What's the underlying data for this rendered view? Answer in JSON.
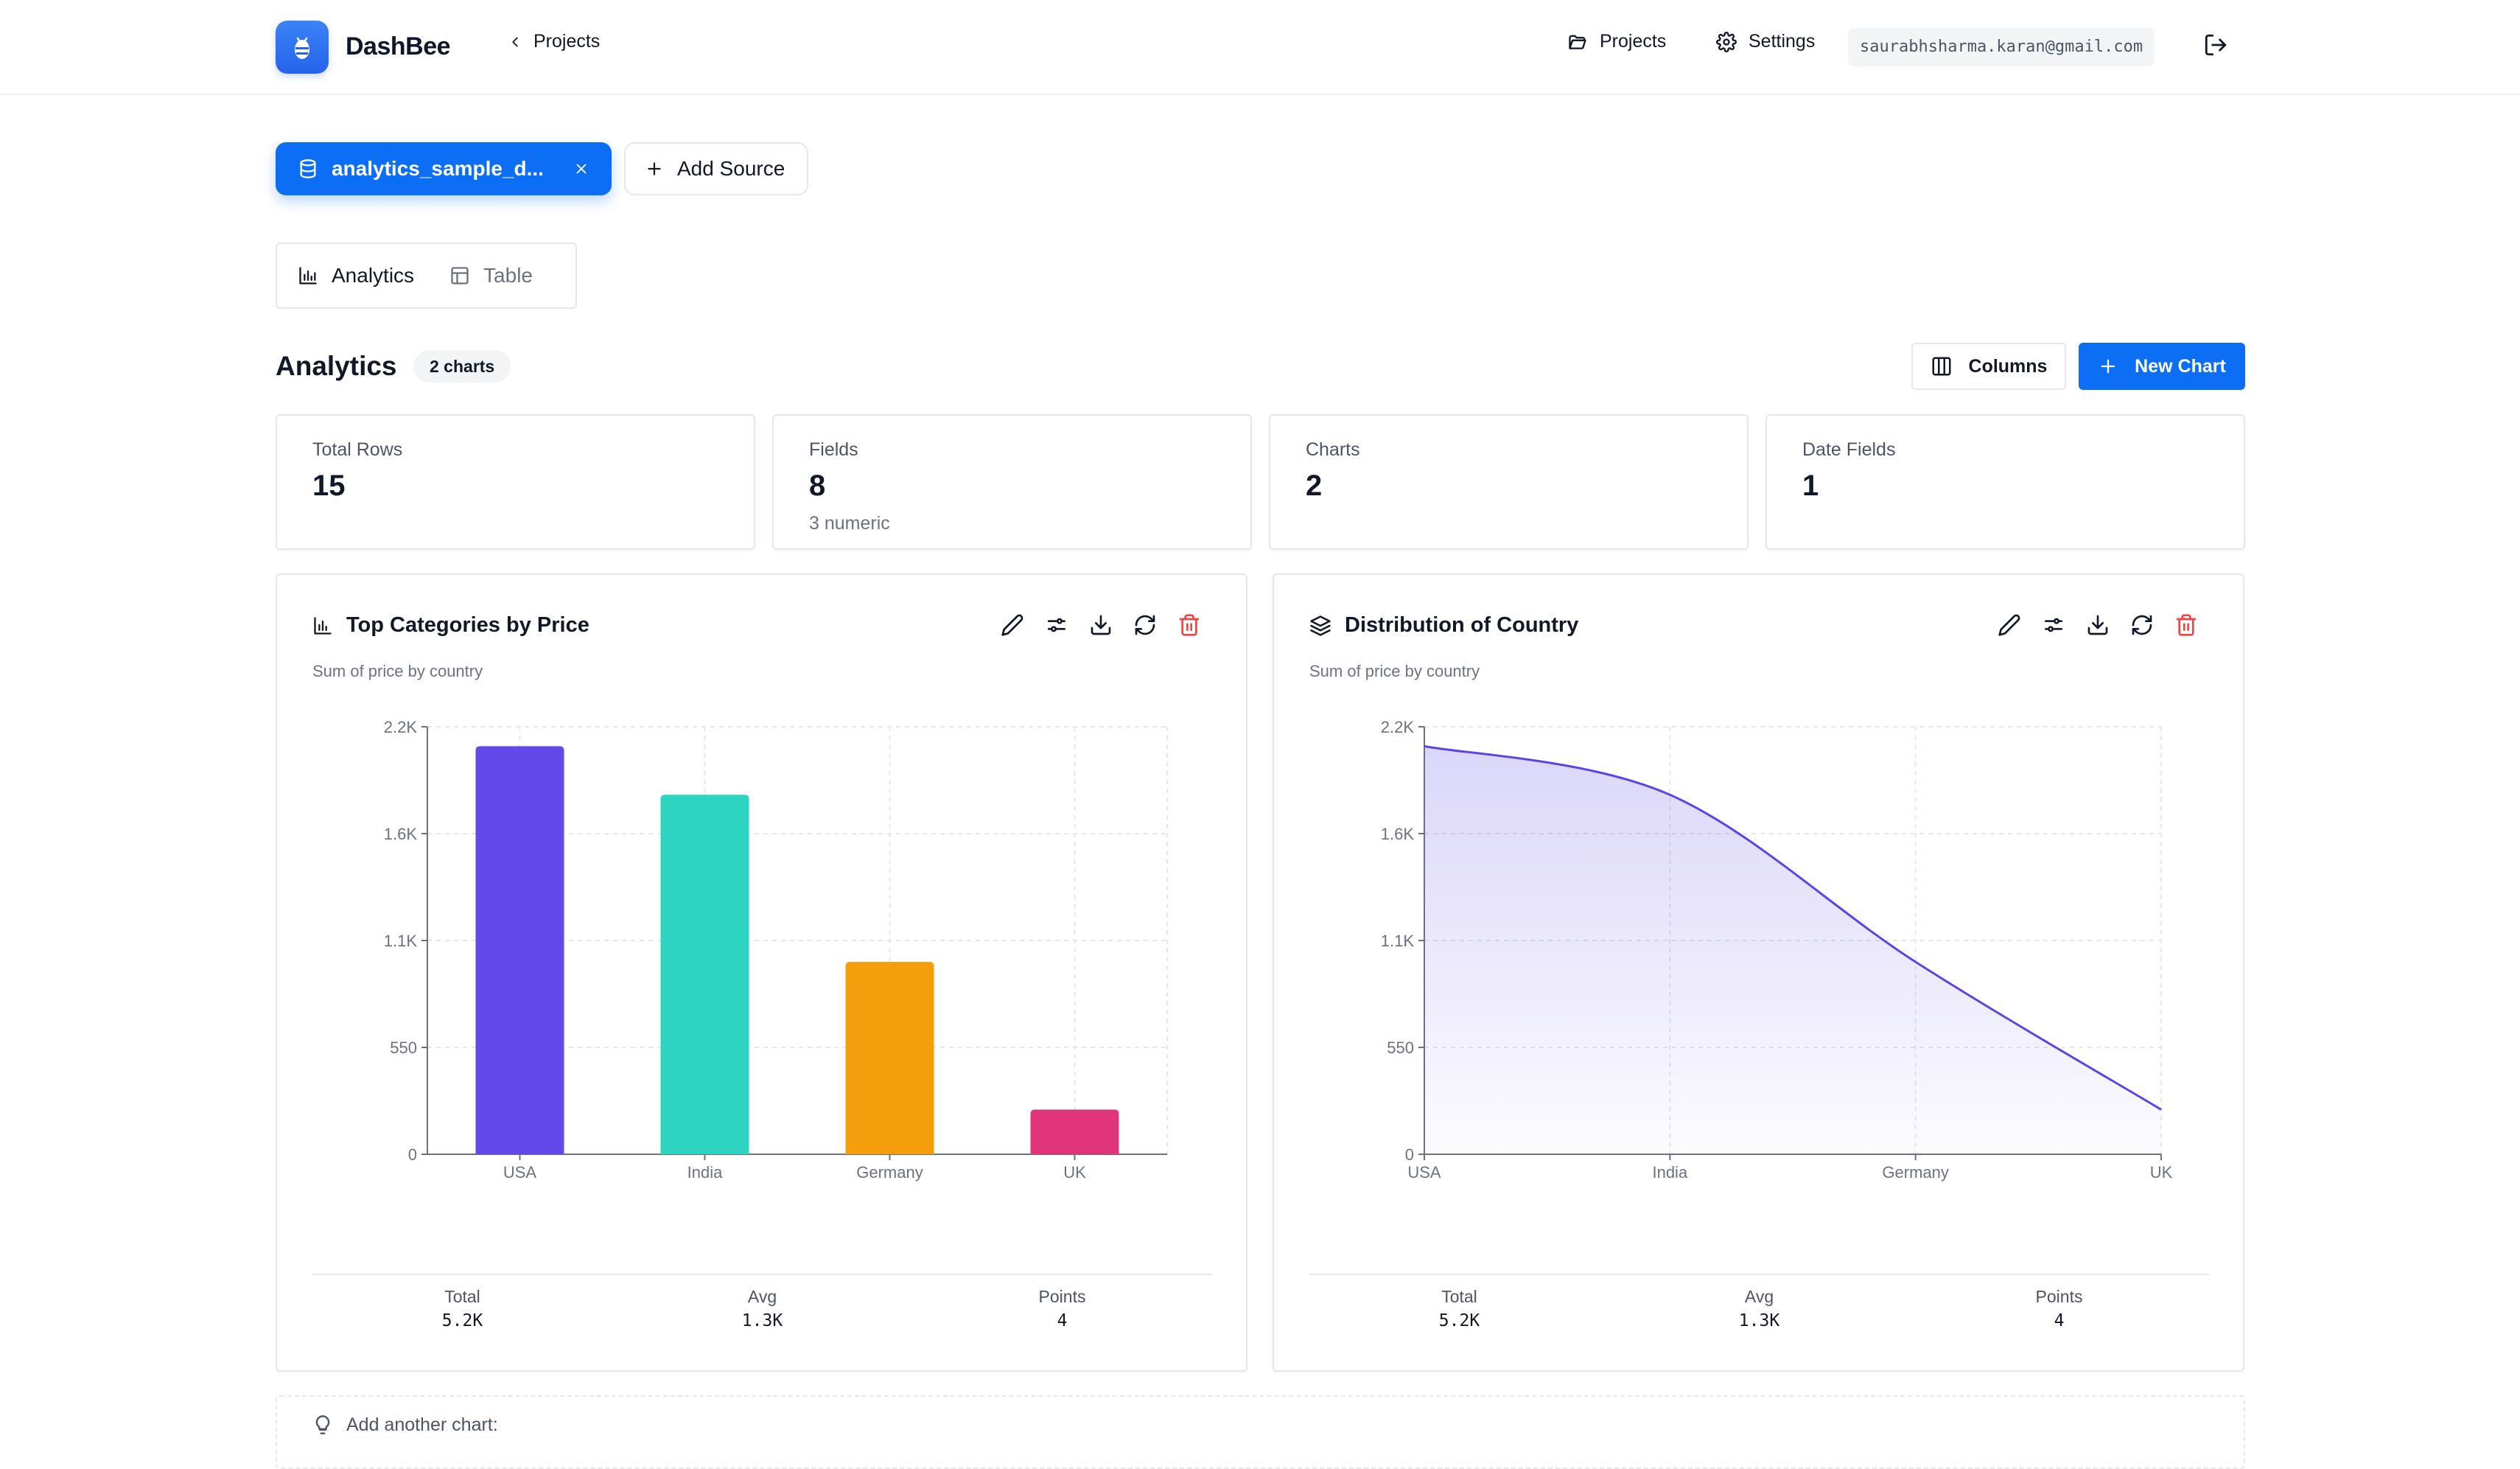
{
  "header": {
    "brand": "DashBee",
    "back_label": "Projects",
    "nav_projects": "Projects",
    "nav_settings": "Settings",
    "email": "saurabhsharma.karan@gmail.com"
  },
  "sources": {
    "active": "analytics_sample_d...",
    "add_label": "Add Source"
  },
  "view_tabs": [
    {
      "label": "Analytics",
      "active": true
    },
    {
      "label": "Table",
      "active": false
    }
  ],
  "section": {
    "title": "Analytics",
    "badge": "2 charts",
    "columns_label": "Columns",
    "new_chart_label": "New Chart"
  },
  "stats": [
    {
      "label": "Total Rows",
      "value": "15",
      "sub": ""
    },
    {
      "label": "Fields",
      "value": "8",
      "sub": "3 numeric"
    },
    {
      "label": "Charts",
      "value": "2",
      "sub": ""
    },
    {
      "label": "Date Fields",
      "value": "1",
      "sub": ""
    }
  ],
  "charts": [
    {
      "title": "Top Categories by Price",
      "subtitle": "Sum of price by country",
      "icon": "bar-chart-icon",
      "summary": {
        "total_label": "Total",
        "total": "5.2K",
        "avg_label": "Avg",
        "avg": "1.3K",
        "points_label": "Points",
        "points": "4"
      }
    },
    {
      "title": "Distribution of Country",
      "subtitle": "Sum of price by country",
      "icon": "layers-icon",
      "summary": {
        "total_label": "Total",
        "total": "5.2K",
        "avg_label": "Avg",
        "avg": "1.3K",
        "points_label": "Points",
        "points": "4"
      }
    }
  ],
  "chart_data": [
    {
      "type": "bar",
      "categories": [
        "USA",
        "India",
        "Germany",
        "UK"
      ],
      "values": [
        2100,
        1850,
        990,
        230
      ],
      "colors": [
        "#6348ea",
        "#2dd4bf",
        "#f59e0b",
        "#e0357a"
      ],
      "ylim": [
        0,
        2200
      ],
      "yticks": [
        0,
        550,
        1100,
        1650,
        2200
      ],
      "ytick_labels": [
        "0",
        "550",
        "1.1K",
        "1.6K",
        "2.2K"
      ],
      "grid": true
    },
    {
      "type": "area",
      "categories": [
        "USA",
        "India",
        "Germany",
        "UK"
      ],
      "values": [
        2100,
        1850,
        990,
        230
      ],
      "color": "#5b46e5",
      "ylim": [
        0,
        2200
      ],
      "yticks": [
        0,
        550,
        1100,
        1650,
        2200
      ],
      "ytick_labels": [
        "0",
        "550",
        "1.1K",
        "1.6K",
        "2.2K"
      ],
      "grid": true
    }
  ],
  "tip": {
    "text": "Add another chart:"
  },
  "colors": {
    "primary": "#0b6ef5",
    "danger": "#ef4444"
  }
}
